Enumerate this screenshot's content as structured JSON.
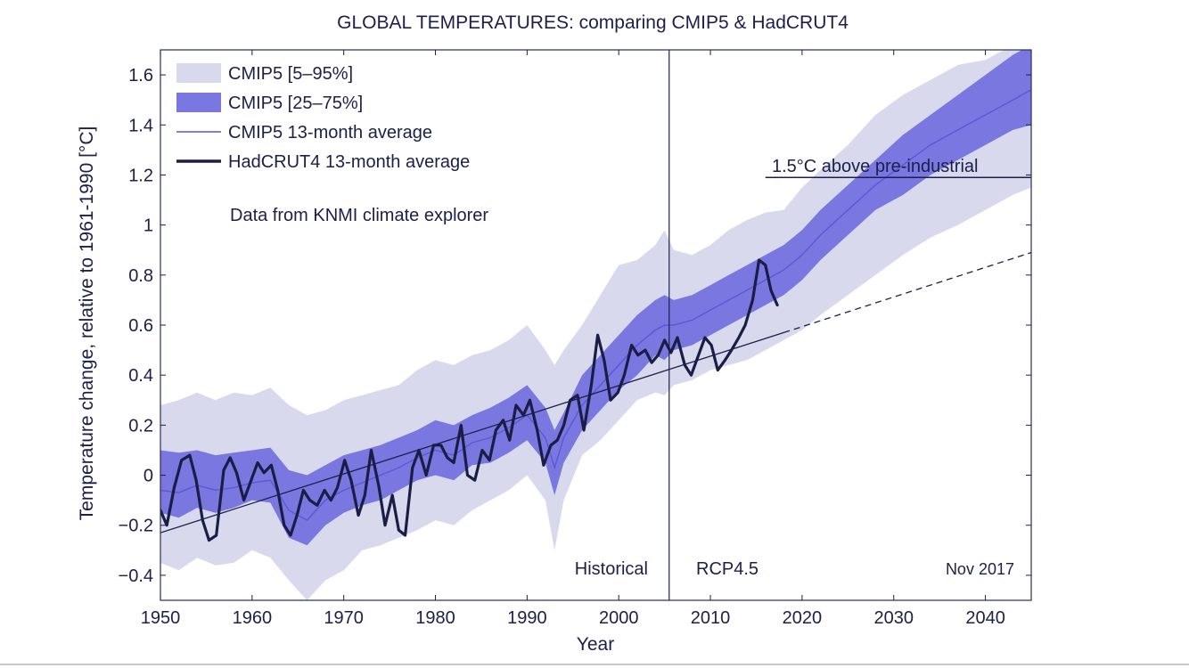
{
  "chart_data": {
    "type": "area",
    "title": "GLOBAL TEMPERATURES: comparing CMIP5 & HadCRUT4",
    "xlabel": "Year",
    "ylabel": "Temperature change, relative to 1961-1990 [°C]",
    "xlim": [
      1950,
      2045
    ],
    "ylim": [
      -0.5,
      1.7
    ],
    "x_ticks": [
      1950,
      1960,
      1970,
      1980,
      1990,
      2000,
      2010,
      2020,
      2030,
      2040
    ],
    "y_ticks": [
      -0.4,
      -0.2,
      0,
      0.2,
      0.4,
      0.6,
      0.8,
      1,
      1.2,
      1.4,
      1.6
    ],
    "y_tick_labels": [
      "−0.4",
      "−0.2",
      "0",
      "0.2",
      "0.4",
      "0.6",
      "0.8",
      "1",
      "1.2",
      "1.4",
      "1.6"
    ],
    "grid": false,
    "legend_position": "top-left",
    "legend": [
      {
        "label": "CMIP5 [5–95%]",
        "kind": "band",
        "color": "#d8d9ec"
      },
      {
        "label": "CMIP5 [25–75%]",
        "kind": "band",
        "color": "#7a77e0"
      },
      {
        "label": "CMIP5 13-month average",
        "kind": "line",
        "color": "#5b58d6"
      },
      {
        "label": "HadCRUT4 13-month average",
        "kind": "line",
        "color": "#1a1d45"
      }
    ],
    "annotations": {
      "source": "Data from KNMI climate explorer",
      "threshold_label": "1.5°C above pre-industrial",
      "period_left": "Historical",
      "period_right": "RCP4.5",
      "date": "Nov 2017"
    },
    "threshold": {
      "y": 1.19,
      "x_start": 2016,
      "x_end": 2045
    },
    "divider_year": 2005.5,
    "trend": {
      "solid": [
        [
          1950,
          -0.23
        ],
        [
          2018,
          0.57
        ]
      ],
      "dashed": [
        [
          2018,
          0.57
        ],
        [
          2045,
          0.89
        ]
      ]
    },
    "x": [
      1950,
      1952,
      1954,
      1956,
      1958,
      1960,
      1962,
      1964,
      1966,
      1968,
      1970,
      1972,
      1974,
      1976,
      1978,
      1980,
      1982,
      1984,
      1986,
      1988,
      1990,
      1992,
      1993,
      1994,
      1996,
      1998,
      2000,
      2002,
      2004,
      2005,
      2006,
      2008,
      2010,
      2012,
      2014,
      2016,
      2018,
      2020,
      2022,
      2025,
      2028,
      2031,
      2034,
      2037,
      2040,
      2043,
      2045
    ],
    "series": [
      {
        "name": "CMIP5 [5–95%]",
        "role": "outer_band",
        "low": [
          -0.35,
          -0.38,
          -0.33,
          -0.36,
          -0.35,
          -0.3,
          -0.33,
          -0.42,
          -0.5,
          -0.42,
          -0.38,
          -0.3,
          -0.28,
          -0.25,
          -0.22,
          -0.18,
          -0.2,
          -0.14,
          -0.1,
          -0.06,
          0.0,
          -0.1,
          -0.3,
          -0.1,
          0.08,
          0.14,
          0.22,
          0.3,
          0.33,
          0.32,
          0.36,
          0.38,
          0.42,
          0.44,
          0.46,
          0.5,
          0.54,
          0.58,
          0.64,
          0.72,
          0.8,
          0.88,
          0.95,
          1.0,
          1.06,
          1.12,
          1.15
        ],
        "high": [
          0.28,
          0.3,
          0.33,
          0.3,
          0.33,
          0.32,
          0.35,
          0.28,
          0.24,
          0.26,
          0.3,
          0.32,
          0.34,
          0.36,
          0.42,
          0.46,
          0.44,
          0.48,
          0.5,
          0.54,
          0.6,
          0.5,
          0.44,
          0.5,
          0.6,
          0.72,
          0.84,
          0.86,
          0.92,
          0.98,
          0.9,
          0.88,
          0.92,
          0.98,
          1.02,
          1.05,
          1.06,
          1.15,
          1.22,
          1.32,
          1.44,
          1.52,
          1.58,
          1.64,
          1.66,
          1.72,
          1.72
        ]
      },
      {
        "name": "CMIP5 [25–75%]",
        "role": "inner_band",
        "low": [
          -0.15,
          -0.17,
          -0.13,
          -0.15,
          -0.13,
          -0.1,
          -0.11,
          -0.25,
          -0.28,
          -0.2,
          -0.15,
          -0.12,
          -0.1,
          -0.06,
          -0.02,
          0.0,
          -0.02,
          0.04,
          0.05,
          0.09,
          0.14,
          0.05,
          -0.08,
          0.05,
          0.18,
          0.26,
          0.34,
          0.4,
          0.48,
          0.46,
          0.5,
          0.52,
          0.56,
          0.6,
          0.64,
          0.68,
          0.72,
          0.78,
          0.86,
          0.96,
          1.06,
          1.12,
          1.2,
          1.26,
          1.32,
          1.38,
          1.4
        ],
        "high": [
          0.1,
          0.09,
          0.1,
          0.08,
          0.09,
          0.1,
          0.11,
          0.02,
          0.0,
          0.04,
          0.08,
          0.1,
          0.12,
          0.15,
          0.18,
          0.22,
          0.2,
          0.24,
          0.27,
          0.31,
          0.36,
          0.27,
          0.18,
          0.25,
          0.4,
          0.48,
          0.56,
          0.64,
          0.7,
          0.72,
          0.7,
          0.72,
          0.76,
          0.8,
          0.84,
          0.88,
          0.92,
          0.98,
          1.06,
          1.16,
          1.26,
          1.36,
          1.44,
          1.52,
          1.6,
          1.68,
          1.72
        ]
      },
      {
        "name": "CMIP5 13-month average",
        "role": "mean",
        "values": [
          -0.06,
          -0.07,
          -0.04,
          -0.06,
          -0.05,
          -0.03,
          -0.02,
          -0.14,
          -0.18,
          -0.1,
          -0.06,
          -0.03,
          0.0,
          0.03,
          0.07,
          0.1,
          0.08,
          0.13,
          0.15,
          0.19,
          0.24,
          0.15,
          0.03,
          0.15,
          0.28,
          0.36,
          0.44,
          0.52,
          0.58,
          0.6,
          0.6,
          0.62,
          0.66,
          0.7,
          0.74,
          0.78,
          0.82,
          0.88,
          0.96,
          1.06,
          1.16,
          1.24,
          1.32,
          1.38,
          1.44,
          1.5,
          1.54
        ]
      },
      {
        "name": "HadCRUT4 13-month average",
        "role": "observed",
        "x": [
          1950,
          1950.7,
          1951.5,
          1952.3,
          1953.2,
          1953.9,
          1954.6,
          1955.3,
          1956.1,
          1956.9,
          1957.6,
          1958.3,
          1959.1,
          1959.9,
          1960.6,
          1961.3,
          1962.1,
          1962.8,
          1963.5,
          1964.2,
          1964.9,
          1965.6,
          1966.3,
          1967.1,
          1967.9,
          1968.6,
          1969.3,
          1970.1,
          1970.8,
          1971.6,
          1972.3,
          1973.0,
          1973.8,
          1974.5,
          1975.3,
          1976.0,
          1976.7,
          1977.5,
          1978.2,
          1979.0,
          1979.8,
          1980.6,
          1981.3,
          1982.0,
          1982.8,
          1983.5,
          1984.3,
          1985.1,
          1985.9,
          1986.6,
          1987.4,
          1988.1,
          1988.8,
          1989.6,
          1990.3,
          1991.1,
          1991.8,
          1992.6,
          1993.3,
          1994.0,
          1994.7,
          1995.5,
          1996.2,
          1997.0,
          1997.7,
          1998.4,
          1999.1,
          1999.9,
          2000.6,
          2001.4,
          2002.1,
          2002.9,
          2003.6,
          2004.3,
          2005.0,
          2005.7,
          2006.4,
          2007.2,
          2007.9,
          2008.7,
          2009.4,
          2010.1,
          2010.8,
          2011.6,
          2012.3,
          2013.1,
          2013.8,
          2014.6,
          2015.3,
          2016.0,
          2016.6,
          2017.3
        ],
        "values": [
          -0.14,
          -0.2,
          -0.05,
          0.06,
          0.08,
          -0.02,
          -0.18,
          -0.26,
          -0.24,
          0.02,
          0.07,
          0.01,
          -0.1,
          -0.02,
          0.05,
          0.01,
          0.04,
          -0.06,
          -0.2,
          -0.24,
          -0.16,
          -0.06,
          -0.1,
          -0.12,
          -0.06,
          -0.1,
          -0.05,
          0.06,
          -0.02,
          -0.16,
          -0.08,
          0.1,
          -0.04,
          -0.2,
          -0.08,
          -0.22,
          -0.24,
          0.03,
          0.1,
          0.0,
          0.12,
          0.12,
          0.07,
          0.05,
          0.2,
          0.0,
          -0.02,
          0.1,
          0.06,
          0.18,
          0.22,
          0.14,
          0.28,
          0.24,
          0.3,
          0.18,
          0.04,
          0.12,
          0.14,
          0.2,
          0.3,
          0.32,
          0.18,
          0.36,
          0.56,
          0.46,
          0.3,
          0.33,
          0.4,
          0.52,
          0.48,
          0.5,
          0.45,
          0.48,
          0.54,
          0.49,
          0.55,
          0.44,
          0.4,
          0.48,
          0.55,
          0.52,
          0.42,
          0.46,
          0.5,
          0.55,
          0.6,
          0.7,
          0.86,
          0.84,
          0.74,
          0.68
        ]
      }
    ]
  }
}
